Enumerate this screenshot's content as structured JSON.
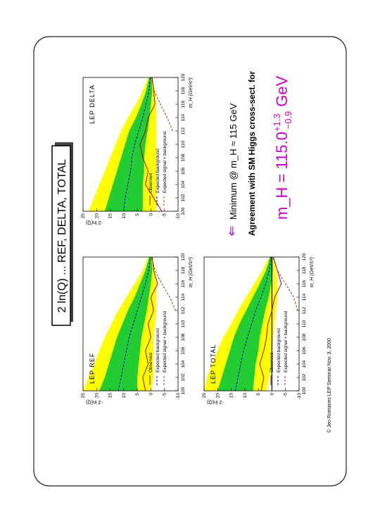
{
  "slide": {
    "title": "2 ln(Q) ... REF, DELTA, TOTAL",
    "arrow": "⇐",
    "lines": [
      "Minimum @ m_H ≈ 115 GeV",
      "Agreement with SM Higgs cross-sect. for"
    ],
    "result": {
      "main": "m_H = 115.0",
      "sup": "+1.3",
      "sub": "−0.9",
      "unit": "GeV"
    },
    "footer": "© Jeo Romanes   LEP Seminar   Nov. 3, 2000"
  },
  "chart_data": [
    {
      "type": "line",
      "label": "LEP REF",
      "label_corner": "top-left",
      "zero_line": false,
      "x_label": "m_H (GeV/c²)",
      "y_label": "-2 ln(Q)",
      "x": [
        100,
        102,
        104,
        106,
        108,
        110,
        112,
        114,
        116,
        118,
        120
      ],
      "xlim": [
        100,
        120
      ],
      "xticks": [
        100,
        102,
        104,
        106,
        108,
        110,
        112,
        114,
        116,
        118,
        120
      ],
      "ylim": [
        -10,
        25
      ],
      "yticks": [
        -10,
        -5,
        0,
        5,
        10,
        15,
        20,
        25
      ],
      "bands": [
        {
          "color": "#ffff00",
          "lower": [
            0,
            -1,
            -1,
            -1,
            -1,
            -1.5,
            -2,
            -2,
            -2,
            -1.5,
            -0.5
          ],
          "upper": [
            25,
            23,
            21,
            19,
            17,
            14.5,
            12,
            9,
            6,
            3,
            1
          ]
        },
        {
          "color": "#22cc33",
          "lower": [
            5,
            5,
            4.5,
            4,
            3.5,
            2.5,
            1.5,
            0.8,
            0,
            -0.5,
            -0.2
          ],
          "upper": [
            19,
            17,
            15.5,
            14,
            12.5,
            10.5,
            8.5,
            6,
            4,
            2,
            0.6
          ]
        }
      ],
      "series": [
        {
          "name": "Observed",
          "color": "#c00000",
          "dashed": false,
          "values": [
            2,
            3,
            1,
            2,
            0,
            1,
            -1,
            0,
            -2.5,
            -1,
            -0.5
          ]
        },
        {
          "name": "Expected background",
          "color": "#0000cc",
          "dashed": true,
          "values": [
            12,
            11,
            10,
            9,
            8,
            6.5,
            5,
            3.5,
            2,
            0.8,
            0.2
          ]
        },
        {
          "name": "Expected signal + background",
          "color": "#8b4513",
          "dashed": true,
          "values": [
            null,
            null,
            null,
            null,
            null,
            null,
            -9,
            -7,
            -4,
            -1.5,
            -0.2
          ]
        }
      ]
    },
    {
      "type": "line",
      "label": "LEP TOTAL",
      "label_corner": "top-left",
      "zero_line": true,
      "x_label": "m_H (GeV/c²)",
      "y_label": "-2 ln(Q)",
      "x": [
        100,
        102,
        104,
        106,
        108,
        110,
        112,
        114,
        116,
        118,
        120
      ],
      "xlim": [
        100,
        120
      ],
      "xticks": [
        100,
        102,
        104,
        106,
        108,
        110,
        112,
        114,
        116,
        118,
        120
      ],
      "ylim": [
        -10,
        25
      ],
      "yticks": [
        -10,
        -5,
        0,
        5,
        10,
        15,
        20,
        25
      ],
      "bands": [
        {
          "color": "#ffff00",
          "lower": [
            2,
            1,
            0,
            0,
            -0.5,
            -1,
            -1.5,
            -2,
            -2,
            -1.5,
            -0.5
          ],
          "upper": [
            25,
            24,
            22,
            20,
            18,
            15,
            12.5,
            9.5,
            6.5,
            3.5,
            1
          ]
        },
        {
          "color": "#22cc33",
          "lower": [
            7,
            6.5,
            6,
            5,
            4.5,
            3.5,
            2.5,
            1.2,
            0.3,
            -0.3,
            -0.2
          ],
          "upper": [
            20,
            18.5,
            17,
            15.5,
            14,
            12,
            9.5,
            7,
            4.5,
            2.2,
            0.7
          ]
        }
      ],
      "series": [
        {
          "name": "Observed",
          "color": "#c00000",
          "dashed": false,
          "values": [
            4,
            3,
            4.5,
            3,
            2,
            1.5,
            0,
            -1,
            -3.5,
            -2,
            -0.5
          ]
        },
        {
          "name": "Expected background",
          "color": "#0000cc",
          "dashed": true,
          "values": [
            13.5,
            12.5,
            11.5,
            10.5,
            9,
            7.5,
            6,
            4,
            2.3,
            1,
            0.2
          ]
        },
        {
          "name": "Expected signal + background",
          "color": "#8b4513",
          "dashed": true,
          "values": [
            null,
            null,
            null,
            null,
            null,
            null,
            -9.5,
            -8,
            -5,
            -2,
            -0.3
          ]
        }
      ]
    },
    {
      "type": "line",
      "label": "LEP DELTA",
      "label_corner": "top-right",
      "zero_line": false,
      "x_label": "m_H (GeV/c²)",
      "y_label": "-2 ln(Q)",
      "x": [
        100,
        102,
        104,
        106,
        108,
        110,
        112,
        114,
        116,
        118,
        120
      ],
      "xlim": [
        100,
        120
      ],
      "xticks": [
        100,
        102,
        104,
        106,
        108,
        110,
        112,
        114,
        116,
        118,
        120
      ],
      "ylim": [
        -10,
        25
      ],
      "yticks": [
        -10,
        -5,
        0,
        5,
        10,
        15,
        20,
        25
      ],
      "bands": [
        {
          "color": "#ffff00",
          "lower": [
            -2,
            -2,
            -2,
            -2,
            -2,
            -2,
            -2,
            -2,
            -2,
            -1.5,
            -0.5
          ],
          "upper": [
            23,
            21,
            19,
            17,
            15,
            13,
            11,
            8.5,
            5.5,
            3,
            1
          ]
        },
        {
          "color": "#22cc33",
          "lower": [
            3,
            3,
            3,
            2.5,
            2.5,
            2,
            1.2,
            0.5,
            0,
            -0.5,
            -0.2
          ],
          "upper": [
            17,
            15.5,
            14,
            12.5,
            11,
            9.5,
            8,
            5.5,
            3.5,
            1.8,
            0.6
          ]
        }
      ],
      "series": [
        {
          "name": "Observed",
          "color": "#c00000",
          "dashed": false,
          "values": [
            -4,
            -1,
            2,
            1,
            3,
            4,
            2,
            1,
            -1.5,
            -1,
            -0.5
          ]
        },
        {
          "name": "Expected background",
          "color": "#0000cc",
          "dashed": true,
          "values": [
            10,
            9.5,
            8.5,
            7.5,
            7,
            6,
            4.5,
            3,
            1.8,
            0.7,
            0.2
          ]
        },
        {
          "name": "Expected signal + background",
          "color": "#8b4513",
          "dashed": true,
          "values": [
            null,
            null,
            null,
            null,
            null,
            null,
            -8,
            -6,
            -3.5,
            -1.2,
            -0.2
          ]
        }
      ]
    }
  ]
}
